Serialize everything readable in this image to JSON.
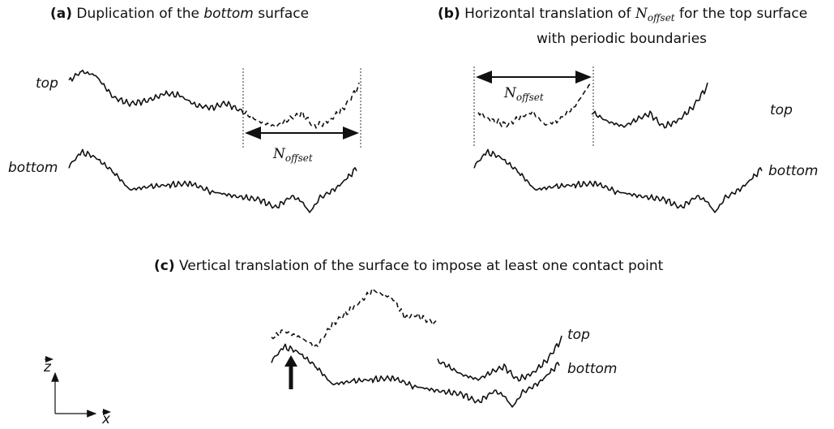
{
  "panels": [
    {
      "label": "(a)",
      "title": [
        "Duplication of the ",
        "bottom",
        " surface"
      ],
      "top": "top",
      "bottom": "bottom",
      "offset": {
        "symbol": "N",
        "subscript": "offset"
      }
    },
    {
      "label": "(b)",
      "title": [
        "Horizontal translation of ",
        "N",
        "offset",
        " for the top surface"
      ],
      "title_line2": "with periodic boundaries",
      "top": "top",
      "bottom": "bottom",
      "offset": {
        "symbol": "N",
        "subscript": "offset"
      }
    },
    {
      "label": "(c)",
      "title": "Vertical translation of the surface to impose at least one contact point",
      "top": "top",
      "bottom": "bottom"
    }
  ],
  "axes": {
    "z": "z",
    "x": "x"
  }
}
